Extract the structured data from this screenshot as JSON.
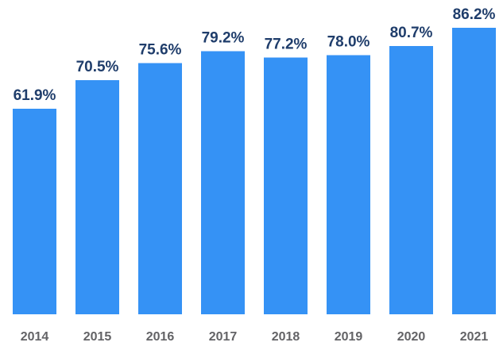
{
  "chart_data": {
    "type": "bar",
    "categories": [
      "2014",
      "2015",
      "2016",
      "2017",
      "2018",
      "2019",
      "2020",
      "2021"
    ],
    "values": [
      61.9,
      70.5,
      75.6,
      79.2,
      77.2,
      78.0,
      80.7,
      86.2
    ],
    "value_labels": [
      "61.9%",
      "70.5%",
      "75.6%",
      "79.2%",
      "77.2%",
      "78.0%",
      "80.7%",
      "86.2%"
    ],
    "unit": "%",
    "title": "",
    "xlabel": "",
    "ylabel": "",
    "ylim": [
      0,
      86.2
    ],
    "grid": false,
    "legend": "none"
  },
  "colors": {
    "bar": "#3592f5",
    "value_label": "#1f3d6b",
    "tick_label": "#636366",
    "background": "#ffffff"
  }
}
